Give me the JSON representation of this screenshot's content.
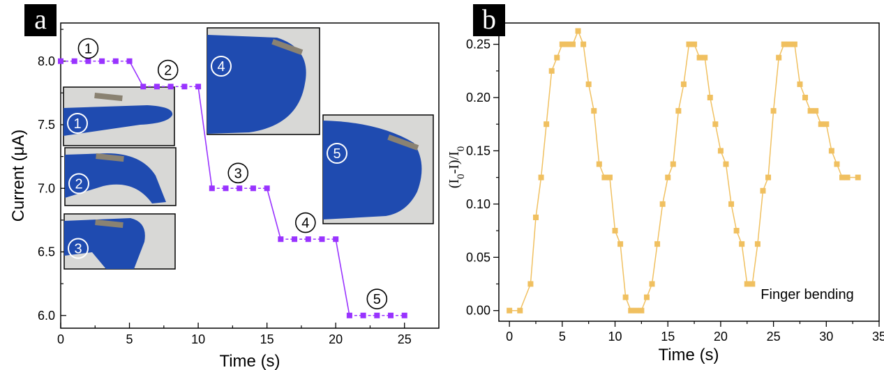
{
  "colors": {
    "series_a": "#9933ff",
    "series_b": "#f0c060",
    "glove": "#1f4bb0",
    "photo_bg": "#d8d8d6"
  },
  "chart_data": [
    {
      "panel": "a",
      "type": "line",
      "xlabel": "Time (s)",
      "ylabel": "Current (μA)",
      "xlim": [
        0,
        27.5
      ],
      "ylim": [
        5.9,
        8.3
      ],
      "xticks": [
        "0",
        "5",
        "10",
        "15",
        "20",
        "25"
      ],
      "yticks": [
        "6.0",
        "6.5",
        "7.0",
        "7.5",
        "8.0"
      ],
      "series": [
        {
          "x": [
            0,
            1,
            2,
            3,
            4,
            5,
            6,
            7,
            8,
            9,
            10,
            11,
            12,
            13,
            14,
            15,
            16,
            17,
            18,
            19,
            20,
            21,
            22,
            23,
            24,
            25
          ],
          "values": [
            8.0,
            8.0,
            8.0,
            8.0,
            8.0,
            8.0,
            7.8,
            7.8,
            7.8,
            7.8,
            7.8,
            7.0,
            7.0,
            7.0,
            7.0,
            7.0,
            6.6,
            6.6,
            6.6,
            6.6,
            6.6,
            6.0,
            6.0,
            6.0,
            6.0,
            6.0
          ]
        }
      ],
      "step_labels": [
        "1",
        "2",
        "3",
        "4",
        "5"
      ],
      "photo_labels": [
        "1",
        "2",
        "3",
        "4",
        "5"
      ]
    },
    {
      "panel": "b",
      "type": "line",
      "xlabel": "Time (s)",
      "ylabel": "(I0-I)/I0",
      "xlim": [
        -1,
        35
      ],
      "ylim": [
        -0.01,
        0.27
      ],
      "xticks": [
        "0",
        "5",
        "10",
        "15",
        "20",
        "25",
        "30",
        "35"
      ],
      "yticks": [
        "0.00",
        "0.05",
        "0.10",
        "0.15",
        "0.20",
        "0.25"
      ],
      "annotation": "Finger bending",
      "series": [
        {
          "x": [
            0,
            1,
            2,
            2.5,
            3,
            3.5,
            4,
            4.5,
            5,
            5.5,
            6,
            6.5,
            7,
            7.5,
            8,
            8.5,
            9,
            9.5,
            10,
            10.5,
            11,
            11.5,
            12,
            12.5,
            13,
            13.5,
            14,
            14.5,
            15,
            15.5,
            16,
            16.5,
            17,
            17.5,
            18,
            18.5,
            19,
            19.5,
            20,
            20.5,
            21,
            21.5,
            22,
            22.5,
            23,
            23.5,
            24,
            24.5,
            25,
            25.5,
            26,
            26.5,
            27,
            27.5,
            28,
            28.5,
            29,
            29.5,
            30,
            30.5,
            31,
            31.5,
            32,
            33
          ],
          "values": [
            0,
            0,
            0.025,
            0.0875,
            0.125,
            0.175,
            0.225,
            0.2375,
            0.25,
            0.25,
            0.25,
            0.2625,
            0.25,
            0.2125,
            0.1875,
            0.1375,
            0.125,
            0.125,
            0.075,
            0.0625,
            0.0125,
            0,
            0,
            0,
            0.0125,
            0.025,
            0.0625,
            0.1,
            0.125,
            0.1375,
            0.1875,
            0.2125,
            0.25,
            0.25,
            0.2375,
            0.2375,
            0.2,
            0.175,
            0.15,
            0.1375,
            0.1,
            0.075,
            0.0625,
            0.025,
            0.025,
            0.0625,
            0.1125,
            0.125,
            0.1875,
            0.2375,
            0.25,
            0.25,
            0.25,
            0.2125,
            0.2,
            0.1875,
            0.1875,
            0.175,
            0.175,
            0.15,
            0.1375,
            0.125,
            0.125,
            0.125
          ]
        }
      ]
    }
  ]
}
